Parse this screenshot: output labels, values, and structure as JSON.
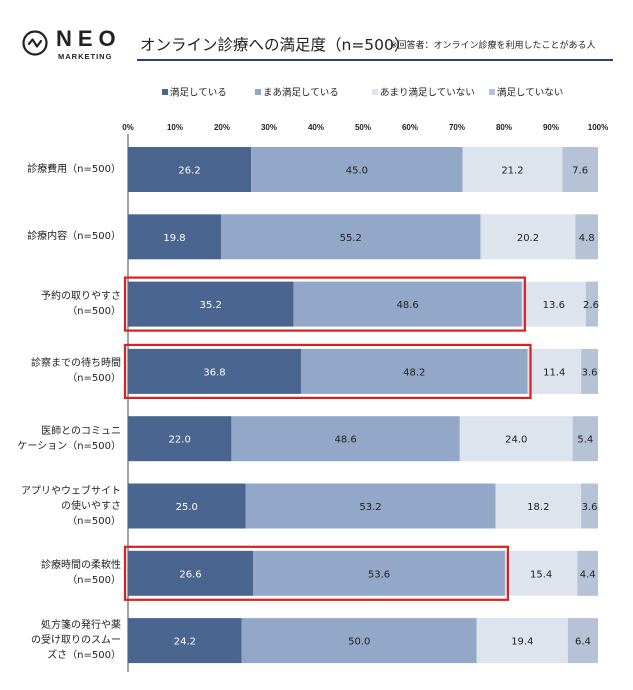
{
  "brand": {
    "name": "NEO",
    "sub": "MARKETING",
    "color": "#222222"
  },
  "header": {
    "title": "オンライン診療への満足度（n=500）",
    "note": "※回答者：オンライン診療を利用したことがある人",
    "rule_color": "#2b3f7a"
  },
  "chart_data": {
    "type": "stacked-bar-horizontal",
    "title": "オンライン診療への満足度（n=500）",
    "legend_position": "top",
    "xlim": [
      0,
      100
    ],
    "x_ticks": [
      "0%",
      "10%",
      "20%",
      "30%",
      "40%",
      "50%",
      "60%",
      "70%",
      "80%",
      "90%",
      "100%"
    ],
    "categories": [
      [
        "診療費用（n=500）"
      ],
      [
        "診療内容（n=500）"
      ],
      [
        "予約の取りやすさ",
        "（n=500）"
      ],
      [
        "診察までの待ち時間",
        "（n=500）"
      ],
      [
        "医師とのコミュニ",
        "ケーション（n=500）"
      ],
      [
        "アプリやウェブサイト",
        "の使いやすさ",
        "（n=500）"
      ],
      [
        "診療時間の柔軟性",
        "（n=500）"
      ],
      [
        "処方箋の発行や薬",
        "の受け取りのスムー",
        "ズさ（n=500）"
      ]
    ],
    "series": [
      {
        "name": "満足している",
        "color": "#4a6590",
        "label_color": "#ffffff",
        "values": [
          26.2,
          19.8,
          35.2,
          36.8,
          22.0,
          25.0,
          26.6,
          24.2
        ],
        "labels": [
          "26.2",
          "19.8",
          "35.2",
          "36.8",
          "22.0",
          "25.0",
          "26.6",
          "24.2"
        ]
      },
      {
        "name": "まあ満足している",
        "color": "#93a8c8",
        "label_color": "#222222",
        "values": [
          45.0,
          55.2,
          48.6,
          48.2,
          48.6,
          53.2,
          53.6,
          50.0
        ],
        "labels": [
          "45.0",
          "55.2",
          "48.6",
          "48.2",
          "48.6",
          "53.2",
          "53.6",
          "50.0"
        ]
      },
      {
        "name": "あまり満足していない",
        "color": "#dde4ee",
        "label_color": "#222222",
        "values": [
          21.2,
          20.2,
          13.6,
          11.4,
          24.0,
          18.2,
          15.4,
          19.4
        ],
        "labels": [
          "21.2",
          "20.2",
          "13.6",
          "11.4",
          "24.0",
          "18.2",
          "15.4",
          "19.4"
        ]
      },
      {
        "name": "満足していない",
        "color": "#b6c3d6",
        "label_color": "#222222",
        "values": [
          7.6,
          4.8,
          2.6,
          3.6,
          5.4,
          3.6,
          4.4,
          6.4
        ],
        "labels": [
          "7.6",
          "4.8",
          "2.6",
          "3.6",
          "5.4",
          "3.6",
          "4.4",
          "6.4"
        ]
      }
    ],
    "highlighted_rows": [
      2,
      3,
      6
    ],
    "highlight_color": "#e01e1e"
  }
}
